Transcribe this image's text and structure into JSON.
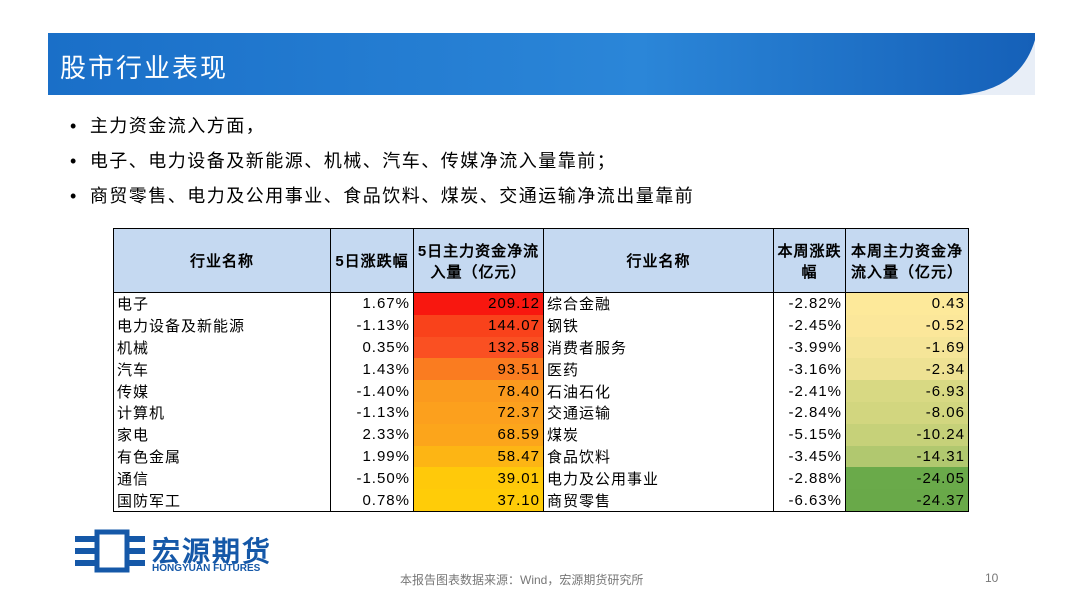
{
  "header": {
    "title": "股市行业表现"
  },
  "bullets": [
    "主力资金流入方面，",
    "电子、电力设备及新能源、机械、汽车、传媒净流入量靠前；",
    "商贸零售、电力及公用事业、食品饮料、煤炭、交通运输净流出量靠前"
  ],
  "table": {
    "header": [
      "行业名称",
      "5日涨跌幅",
      "5日主力资金净流入量（亿元）",
      "行业名称",
      "本周涨跌幅",
      "本周主力资金净流入量（亿元）"
    ],
    "rows": [
      [
        "电子",
        "1.67%",
        "209.12",
        "综合金融",
        "-2.82%",
        "0.43"
      ],
      [
        "电力设备及新能源",
        "-1.13%",
        "144.07",
        "钢铁",
        "-2.45%",
        "-0.52"
      ],
      [
        "机械",
        "0.35%",
        "132.58",
        "消费者服务",
        "-3.99%",
        "-1.69"
      ],
      [
        "汽车",
        "1.43%",
        "93.51",
        "医药",
        "-3.16%",
        "-2.34"
      ],
      [
        "传媒",
        "-1.40%",
        "78.40",
        "石油石化",
        "-2.41%",
        "-6.93"
      ],
      [
        "计算机",
        "-1.13%",
        "72.37",
        "交通运输",
        "-2.84%",
        "-8.06"
      ],
      [
        "家电",
        "2.33%",
        "68.59",
        "煤炭",
        "-5.15%",
        "-10.24"
      ],
      [
        "有色金属",
        "1.99%",
        "58.47",
        "食品饮料",
        "-3.45%",
        "-14.31"
      ],
      [
        "通信",
        "-1.50%",
        "39.01",
        "电力及公用事业",
        "-2.88%",
        "-24.05"
      ],
      [
        "国防军工",
        "0.78%",
        "37.10",
        "商贸零售",
        "-6.63%",
        "-24.37"
      ]
    ],
    "heat_colors": {
      "2": [
        "#f8170f",
        "#f9421b",
        "#fa5022",
        "#fa7c20",
        "#fb9a1e",
        "#fca01d",
        "#fca51b",
        "#fdb514",
        "#ffc90a",
        "#ffcc08"
      ],
      "5": [
        "#fde99a",
        "#fbe79a",
        "#f5e598",
        "#eee293",
        "#d8d983",
        "#d2d67f",
        "#c6d179",
        "#b1c86f",
        "#6aaa4a",
        "#69a949"
      ]
    }
  },
  "logo": {
    "name": "宏源期货",
    "english": "HONGYUAN FUTURES"
  },
  "footer": {
    "source": "本报告图表数据来源：Wind，宏源期货研究所",
    "page": "10"
  }
}
